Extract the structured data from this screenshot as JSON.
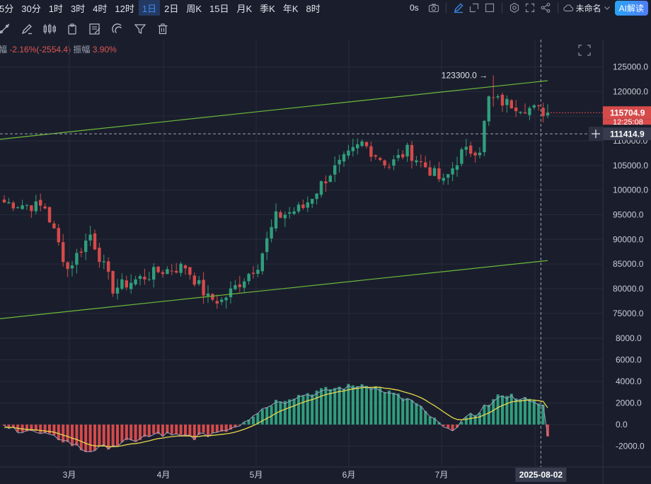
{
  "toolbar": {
    "timeframes": [
      "5分",
      "30分",
      "1时",
      "3时",
      "4时",
      "12时",
      "1日",
      "2日",
      "周K",
      "15日",
      "月K",
      "季K",
      "年K",
      "8时"
    ],
    "active_index": 6,
    "countdown": "0s",
    "unnamed_label": "未命名",
    "ai_label": "AI解读",
    "icons": [
      "camera-icon",
      "pencil-icon",
      "square-in-icon",
      "rectangle-icon",
      "gear-icon",
      "expand-icon",
      "share-icon"
    ],
    "drawing_icons": [
      "line-tool-icon",
      "brush-icon",
      "candles-icon",
      "clip-icon",
      "note-icon",
      "magnet-icon",
      "filter-icon",
      "trash-icon"
    ]
  },
  "info": {
    "change_prefix": "幅",
    "change": "-2.16%(-2554.4)",
    "amplitude_label": "振幅",
    "amplitude": "3.90%"
  },
  "price_labels": {
    "last": "115704.9",
    "countdown": "12:25:08",
    "crosshair": "111414.9",
    "peak": "123300.0"
  },
  "chart_data": {
    "type": "candlestick",
    "price_axis": [
      "125000.0",
      "120000.0",
      "115000.0",
      "110000.0",
      "105000.0",
      "100000.0",
      "95000.0",
      "90000.0",
      "85000.0",
      "80000.0",
      "75000.0"
    ],
    "price_range": [
      73000,
      127000
    ],
    "macd_axis": [
      "8000.0",
      "6000.0",
      "4000.0",
      "2000.0",
      "0.0",
      "-2000.0"
    ],
    "macd_range": [
      -2400,
      8800
    ],
    "x_labels": [
      "3月",
      "4月",
      "5月",
      "6月",
      "7月"
    ],
    "crosshair_date": "2025-08-02",
    "colors": {
      "up": "#2f9e7c",
      "down": "#d64a4a",
      "channel": "#6dbb3a",
      "dif": "#9aa0c0",
      "dea": "#e8d84a",
      "bg": "#1a1e2c"
    },
    "trend_channel": {
      "upper": [
        [
          -1,
          110300
        ],
        [
          120,
          122200
        ]
      ],
      "lower": [
        [
          -1,
          73900
        ],
        [
          120,
          85700
        ]
      ]
    },
    "candle_segments": [
      {
        "from_day": 0,
        "to_day": 9,
        "start": 97500,
        "end": 96500
      },
      {
        "from_day": 9,
        "to_day": 14,
        "start": 96500,
        "end": 84000
      },
      {
        "from_day": 14,
        "to_day": 19,
        "start": 84000,
        "end": 91000
      },
      {
        "from_day": 19,
        "to_day": 24,
        "start": 91000,
        "end": 80000
      },
      {
        "from_day": 24,
        "to_day": 34,
        "start": 80000,
        "end": 83500
      },
      {
        "from_day": 34,
        "to_day": 40,
        "start": 83500,
        "end": 84500
      },
      {
        "from_day": 40,
        "to_day": 45,
        "start": 84500,
        "end": 78000
      },
      {
        "from_day": 45,
        "to_day": 48,
        "start": 78000,
        "end": 77500
      },
      {
        "from_day": 48,
        "to_day": 56,
        "start": 77500,
        "end": 85000
      },
      {
        "from_day": 56,
        "to_day": 60,
        "start": 85000,
        "end": 94500
      },
      {
        "from_day": 60,
        "to_day": 66,
        "start": 94500,
        "end": 96500
      },
      {
        "from_day": 66,
        "to_day": 72,
        "start": 96500,
        "end": 103500
      },
      {
        "from_day": 72,
        "to_day": 79,
        "start": 103500,
        "end": 109500
      },
      {
        "from_day": 79,
        "to_day": 85,
        "start": 109500,
        "end": 105000
      },
      {
        "from_day": 85,
        "to_day": 89,
        "start": 105000,
        "end": 108000
      },
      {
        "from_day": 89,
        "to_day": 94,
        "start": 108000,
        "end": 104000
      },
      {
        "from_day": 94,
        "to_day": 97,
        "start": 104000,
        "end": 101500
      },
      {
        "from_day": 97,
        "to_day": 101,
        "start": 101500,
        "end": 107500
      },
      {
        "from_day": 101,
        "to_day": 105,
        "start": 107500,
        "end": 108500
      },
      {
        "from_day": 105,
        "to_day": 107,
        "start": 108500,
        "end": 118500
      },
      {
        "from_day": 107,
        "to_day": 120,
        "start": 118500,
        "end": 115704
      }
    ],
    "macd_segments": [
      {
        "from_day": 0,
        "to_day": 6,
        "start": -300,
        "end": -600
      },
      {
        "from_day": 6,
        "to_day": 12,
        "start": -600,
        "end": -1300
      },
      {
        "from_day": 12,
        "to_day": 18,
        "start": -1300,
        "end": -2500
      },
      {
        "from_day": 18,
        "to_day": 26,
        "start": -2500,
        "end": -1800
      },
      {
        "from_day": 26,
        "to_day": 34,
        "start": -1800,
        "end": -900
      },
      {
        "from_day": 34,
        "to_day": 42,
        "start": -900,
        "end": -1200
      },
      {
        "from_day": 42,
        "to_day": 50,
        "start": -1200,
        "end": -400
      },
      {
        "from_day": 50,
        "to_day": 60,
        "start": -400,
        "end": 2200
      },
      {
        "from_day": 60,
        "to_day": 70,
        "start": 2200,
        "end": 3200
      },
      {
        "from_day": 70,
        "to_day": 80,
        "start": 3200,
        "end": 3800
      },
      {
        "from_day": 80,
        "to_day": 90,
        "start": 3800,
        "end": 2200
      },
      {
        "from_day": 90,
        "to_day": 98,
        "start": 2200,
        "end": -600
      },
      {
        "from_day": 98,
        "to_day": 104,
        "start": -600,
        "end": 1000
      },
      {
        "from_day": 104,
        "to_day": 110,
        "start": 1000,
        "end": 2900
      },
      {
        "from_day": 110,
        "to_day": 114,
        "start": 2900,
        "end": 2500
      },
      {
        "from_day": 114,
        "to_day": 120,
        "start": 2500,
        "end": 1700
      }
    ],
    "peak_day": 108
  }
}
